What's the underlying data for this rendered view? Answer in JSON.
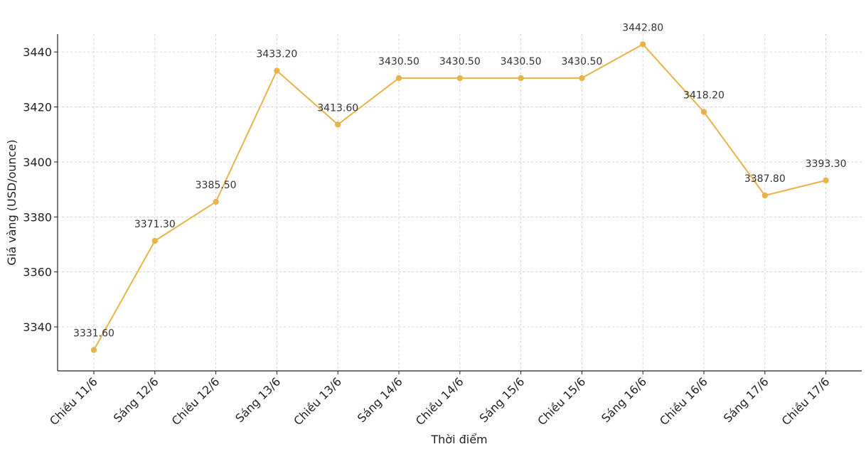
{
  "chart_data": {
    "type": "line",
    "title": "",
    "xlabel": "Thời điểm",
    "ylabel": "Giá vàng (USD/ounce)",
    "categories": [
      "Chiều 11/6",
      "Sáng 12/6",
      "Chiều 12/6",
      "Sáng 13/6",
      "Chiều 13/6",
      "Sáng 14/6",
      "Chiều 14/6",
      "Sáng 15/6",
      "Chiều 15/6",
      "Sáng 16/6",
      "Chiều 16/6",
      "Sáng 17/6",
      "Chiều 17/6"
    ],
    "series": [
      {
        "values": [
          3331.6,
          3371.3,
          3385.5,
          3433.2,
          3413.6,
          3430.5,
          3430.5,
          3430.5,
          3430.5,
          3442.8,
          3418.2,
          3387.8,
          3393.3
        ],
        "labels": [
          "3331.60",
          "3371.30",
          "3385.50",
          "3433.20",
          "3413.60",
          "3430.50",
          "3430.50",
          "3430.50",
          "3430.50",
          "3442.80",
          "3418.20",
          "3387.80",
          "3393.30"
        ],
        "color": "#E8B44A"
      }
    ],
    "yticks": [
      3340,
      3360,
      3380,
      3400,
      3420,
      3440
    ],
    "ylim": [
      3324.0,
      3446.5
    ],
    "grid": true,
    "legend": "none"
  }
}
